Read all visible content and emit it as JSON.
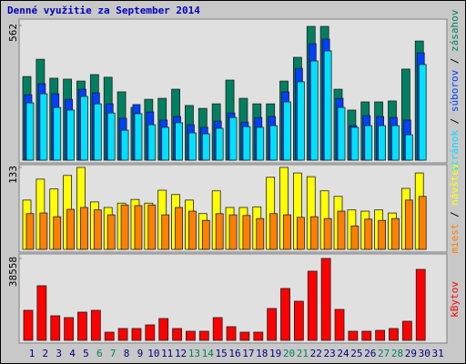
{
  "chart_data": [
    {
      "type": "bar",
      "title": "Denné využitie za September 2014",
      "ylim": [
        0,
        562
      ],
      "yticks": [
        562
      ],
      "legend_separator": " / ",
      "series": [
        {
          "name": "zásahov",
          "color": "#008060",
          "values": [
            349,
            421,
            342,
            338,
            330,
            357,
            346,
            285,
            220,
            254,
            258,
            296,
            228,
            216,
            235,
            334,
            258,
            235,
            235,
            330,
            429,
            558,
            558,
            296,
            209,
            243,
            243,
            247,
            380,
            497,
            null
          ]
        },
        {
          "name": "súborov",
          "color": "#0040ff",
          "values": [
            273,
            319,
            277,
            254,
            296,
            281,
            235,
            175,
            232,
            201,
            167,
            182,
            148,
            137,
            163,
            197,
            159,
            178,
            182,
            285,
            383,
            486,
            505,
            258,
            144,
            186,
            182,
            178,
            167,
            448,
            null
          ]
        },
        {
          "name": "stránok",
          "color": "#00e0ff",
          "values": [
            239,
            277,
            220,
            209,
            266,
            235,
            197,
            125,
            194,
            148,
            137,
            156,
            114,
            110,
            133,
            178,
            140,
            137,
            144,
            243,
            327,
            414,
            456,
            220,
            137,
            144,
            144,
            144,
            106,
            399,
            null
          ]
        }
      ]
    },
    {
      "type": "bar",
      "ylim": [
        0,
        133
      ],
      "yticks": [
        133
      ],
      "legend_separator": " / ",
      "series": [
        {
          "name": "návštev",
          "color": "#ffff00",
          "values": [
            80,
            114,
            98,
            120,
            133,
            77,
            68,
            75,
            81,
            75,
            96,
            89,
            80,
            58,
            95,
            68,
            68,
            69,
            117,
            133,
            124,
            118,
            95,
            86,
            64,
            62,
            64,
            59,
            99,
            124,
            null
          ]
        },
        {
          "name": "miest",
          "color": "#ff8000",
          "values": [
            58,
            59,
            53,
            65,
            68,
            64,
            56,
            72,
            71,
            72,
            56,
            68,
            62,
            47,
            58,
            56,
            55,
            50,
            58,
            56,
            52,
            53,
            50,
            62,
            38,
            49,
            47,
            50,
            80,
            86,
            null
          ]
        }
      ]
    },
    {
      "type": "bar",
      "ylim": [
        0,
        38558
      ],
      "yticks": [
        38558
      ],
      "categories": [
        "1",
        "2",
        "3",
        "4",
        "5",
        "6",
        "7",
        "8",
        "9",
        "10",
        "11",
        "12",
        "13",
        "14",
        "15",
        "16",
        "17",
        "18",
        "19",
        "20",
        "21",
        "22",
        "23",
        "24",
        "25",
        "26",
        "27",
        "28",
        "29",
        "30",
        "31"
      ],
      "category_colors": [
        "#000080",
        "#000080",
        "#000080",
        "#000080",
        "#000080",
        "#008060",
        "#008060",
        "#000080",
        "#000080",
        "#000080",
        "#000080",
        "#000080",
        "#008060",
        "#008060",
        "#000080",
        "#000080",
        "#000080",
        "#000080",
        "#000080",
        "#008060",
        "#008060",
        "#000080",
        "#000080",
        "#000080",
        "#000080",
        "#000080",
        "#008060",
        "#008060",
        "#000080",
        "#000080",
        "#000080"
      ],
      "series": [
        {
          "name": "kBytov",
          "color": "#ff0000",
          "values": [
            14138,
            25705,
            11568,
            10711,
            13281,
            14138,
            3855,
            5569,
            5569,
            7282,
            10282,
            5569,
            4284,
            4284,
            10711,
            6426,
            3855,
            3855,
            14994,
            24420,
            18422,
            32559,
            38558,
            14566,
            4284,
            4284,
            4712,
            5569,
            8997,
            33415,
            null
          ]
        }
      ]
    }
  ]
}
